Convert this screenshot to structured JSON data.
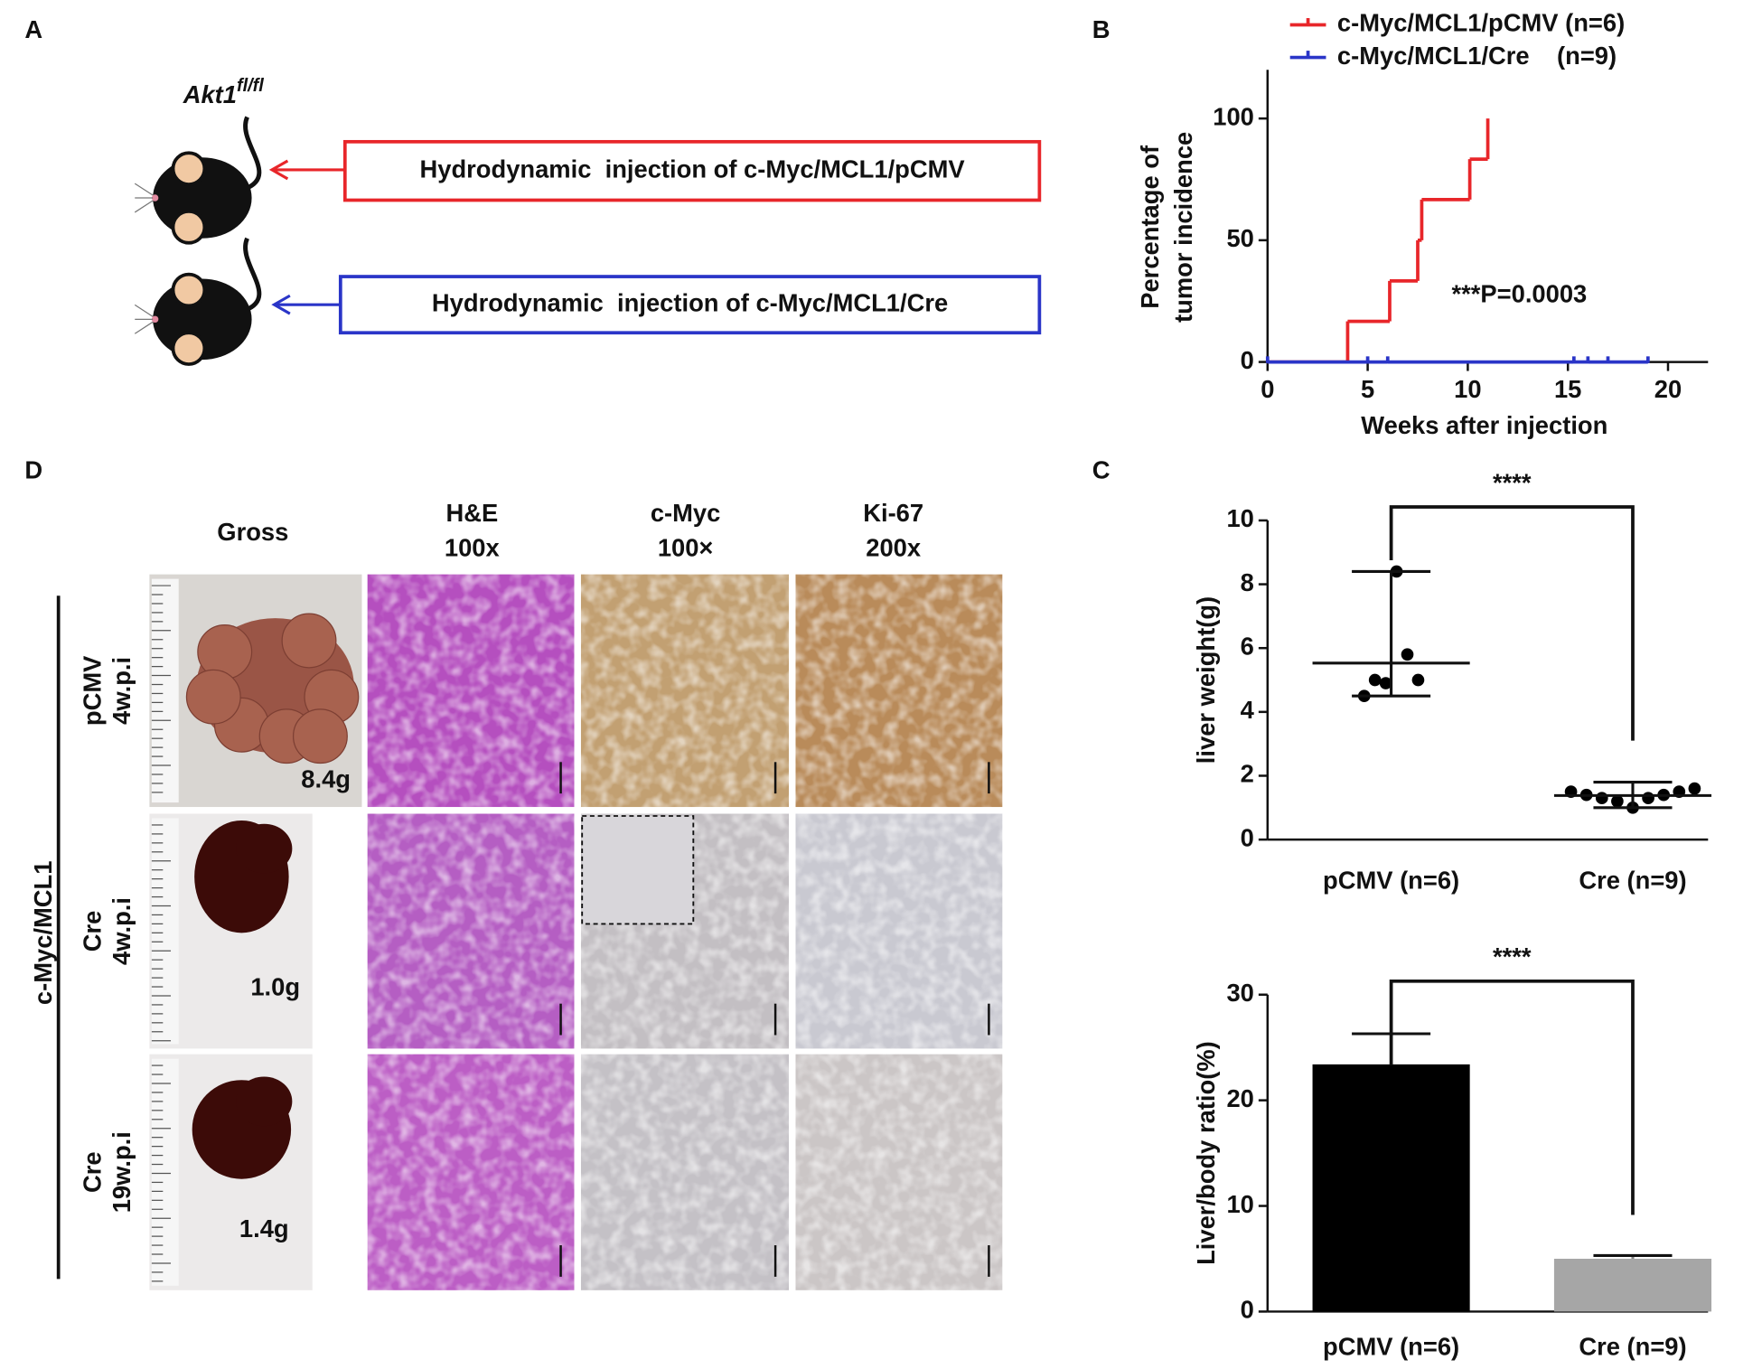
{
  "panel_labels": [
    "A",
    "B",
    "C",
    "D"
  ],
  "panel_a": {
    "genotype": "Akt1",
    "genotype_superscript": "fl/fl",
    "injections": [
      {
        "text": "Hydrodynamic  injection of c-Myc/MCL1/pCMV",
        "color": "#e8262a"
      },
      {
        "text": "Hydrodynamic  injection of c-Myc/MCL1/Cre",
        "color": "#2a35c8"
      }
    ]
  },
  "panel_d": {
    "group_label": "c-Myc/MCL1",
    "columns": [
      [
        "Gross"
      ],
      [
        "H&E",
        "100x"
      ],
      [
        "c-Myc",
        "100×"
      ],
      [
        "Ki-67",
        "200x"
      ]
    ],
    "rows": [
      {
        "label": [
          "pCMV",
          "4w.p.i"
        ],
        "weight": "8.4g"
      },
      {
        "label": [
          "Cre",
          "4w.p.i"
        ],
        "weight": "1.0g"
      },
      {
        "label": [
          "Cre",
          "19w.p.i"
        ],
        "weight": "1.4g"
      }
    ]
  },
  "chart_data": [
    {
      "type": "line",
      "step": true,
      "ylabel": [
        "Percentage of",
        "tumor incidence"
      ],
      "xlabel": "Weeks after injection",
      "annotation": "***P=0.0003",
      "xlim": [
        0,
        22
      ],
      "ylim": [
        0,
        120
      ],
      "xticks": [
        0,
        5,
        10,
        15,
        20
      ],
      "yticks": [
        0,
        50,
        100
      ],
      "legend": "top-left",
      "series": [
        {
          "name": "c-Myc/MCL1/pCMV (n=6)",
          "color": "#e8262a",
          "markers": false,
          "x": [
            0,
            4,
            6.1,
            7.5,
            7.7,
            10.1,
            11
          ],
          "values": [
            0,
            16.7,
            33.3,
            50,
            66.7,
            83.3,
            100
          ]
        },
        {
          "name": "c-Myc/MCL1/Cre    (n=9)",
          "color": "#2a35c8",
          "markers": true,
          "x": [
            0,
            5,
            6,
            15.3,
            16,
            17,
            19
          ],
          "values": [
            0,
            0,
            0,
            0,
            0,
            0,
            0
          ]
        }
      ]
    },
    {
      "type": "scatter",
      "ylabel": "liver weight(g)",
      "significance": "****",
      "color": "#000000",
      "categories": [
        "pCMV (n=6)",
        "Cre (n=9)"
      ],
      "ylim": [
        0,
        10
      ],
      "yticks": [
        0,
        2,
        4,
        6,
        8,
        10
      ],
      "groups": [
        {
          "values": [
            4.5,
            5.0,
            4.9,
            8.4,
            5.8,
            5.0
          ],
          "mean": 5.53,
          "error_low": 4.5,
          "error_high": 8.4
        },
        {
          "values": [
            1.5,
            1.4,
            1.3,
            1.2,
            1.0,
            1.3,
            1.4,
            1.5,
            1.6
          ],
          "mean": 1.38,
          "error_low": 1.0,
          "error_high": 1.8
        }
      ]
    },
    {
      "type": "bar",
      "ylabel": "Liver/body ratio(%)",
      "significance": "****",
      "categories": [
        "pCMV (n=6)",
        "Cre (n=9)"
      ],
      "values": [
        23.4,
        5.0
      ],
      "errors": [
        2.9,
        0.3
      ],
      "colors": [
        "#000000",
        "#a6a6a6"
      ],
      "ylim": [
        0,
        30
      ],
      "yticks": [
        0,
        10,
        20,
        30
      ]
    }
  ]
}
